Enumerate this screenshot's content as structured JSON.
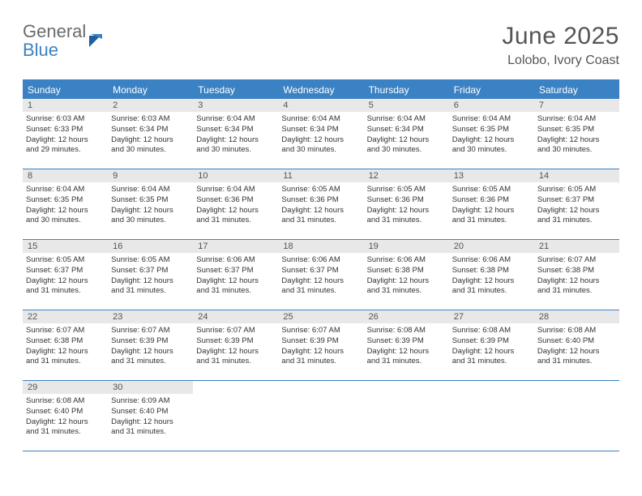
{
  "logo": {
    "general": "General",
    "blue": "Blue"
  },
  "title": "June 2025",
  "location": "Lolobo, Ivory Coast",
  "colors": {
    "header_bar": "#3b82c4",
    "header_text": "#ffffff",
    "day_num_bg": "#e8e8e8",
    "border": "#3b82c4",
    "text": "#333333",
    "title_text": "#555555"
  },
  "weekdays": [
    "Sunday",
    "Monday",
    "Tuesday",
    "Wednesday",
    "Thursday",
    "Friday",
    "Saturday"
  ],
  "weeks": [
    [
      {
        "n": "1",
        "sunrise": "Sunrise: 6:03 AM",
        "sunset": "Sunset: 6:33 PM",
        "day1": "Daylight: 12 hours",
        "day2": "and 29 minutes."
      },
      {
        "n": "2",
        "sunrise": "Sunrise: 6:03 AM",
        "sunset": "Sunset: 6:34 PM",
        "day1": "Daylight: 12 hours",
        "day2": "and 30 minutes."
      },
      {
        "n": "3",
        "sunrise": "Sunrise: 6:04 AM",
        "sunset": "Sunset: 6:34 PM",
        "day1": "Daylight: 12 hours",
        "day2": "and 30 minutes."
      },
      {
        "n": "4",
        "sunrise": "Sunrise: 6:04 AM",
        "sunset": "Sunset: 6:34 PM",
        "day1": "Daylight: 12 hours",
        "day2": "and 30 minutes."
      },
      {
        "n": "5",
        "sunrise": "Sunrise: 6:04 AM",
        "sunset": "Sunset: 6:34 PM",
        "day1": "Daylight: 12 hours",
        "day2": "and 30 minutes."
      },
      {
        "n": "6",
        "sunrise": "Sunrise: 6:04 AM",
        "sunset": "Sunset: 6:35 PM",
        "day1": "Daylight: 12 hours",
        "day2": "and 30 minutes."
      },
      {
        "n": "7",
        "sunrise": "Sunrise: 6:04 AM",
        "sunset": "Sunset: 6:35 PM",
        "day1": "Daylight: 12 hours",
        "day2": "and 30 minutes."
      }
    ],
    [
      {
        "n": "8",
        "sunrise": "Sunrise: 6:04 AM",
        "sunset": "Sunset: 6:35 PM",
        "day1": "Daylight: 12 hours",
        "day2": "and 30 minutes."
      },
      {
        "n": "9",
        "sunrise": "Sunrise: 6:04 AM",
        "sunset": "Sunset: 6:35 PM",
        "day1": "Daylight: 12 hours",
        "day2": "and 30 minutes."
      },
      {
        "n": "10",
        "sunrise": "Sunrise: 6:04 AM",
        "sunset": "Sunset: 6:36 PM",
        "day1": "Daylight: 12 hours",
        "day2": "and 31 minutes."
      },
      {
        "n": "11",
        "sunrise": "Sunrise: 6:05 AM",
        "sunset": "Sunset: 6:36 PM",
        "day1": "Daylight: 12 hours",
        "day2": "and 31 minutes."
      },
      {
        "n": "12",
        "sunrise": "Sunrise: 6:05 AM",
        "sunset": "Sunset: 6:36 PM",
        "day1": "Daylight: 12 hours",
        "day2": "and 31 minutes."
      },
      {
        "n": "13",
        "sunrise": "Sunrise: 6:05 AM",
        "sunset": "Sunset: 6:36 PM",
        "day1": "Daylight: 12 hours",
        "day2": "and 31 minutes."
      },
      {
        "n": "14",
        "sunrise": "Sunrise: 6:05 AM",
        "sunset": "Sunset: 6:37 PM",
        "day1": "Daylight: 12 hours",
        "day2": "and 31 minutes."
      }
    ],
    [
      {
        "n": "15",
        "sunrise": "Sunrise: 6:05 AM",
        "sunset": "Sunset: 6:37 PM",
        "day1": "Daylight: 12 hours",
        "day2": "and 31 minutes."
      },
      {
        "n": "16",
        "sunrise": "Sunrise: 6:05 AM",
        "sunset": "Sunset: 6:37 PM",
        "day1": "Daylight: 12 hours",
        "day2": "and 31 minutes."
      },
      {
        "n": "17",
        "sunrise": "Sunrise: 6:06 AM",
        "sunset": "Sunset: 6:37 PM",
        "day1": "Daylight: 12 hours",
        "day2": "and 31 minutes."
      },
      {
        "n": "18",
        "sunrise": "Sunrise: 6:06 AM",
        "sunset": "Sunset: 6:37 PM",
        "day1": "Daylight: 12 hours",
        "day2": "and 31 minutes."
      },
      {
        "n": "19",
        "sunrise": "Sunrise: 6:06 AM",
        "sunset": "Sunset: 6:38 PM",
        "day1": "Daylight: 12 hours",
        "day2": "and 31 minutes."
      },
      {
        "n": "20",
        "sunrise": "Sunrise: 6:06 AM",
        "sunset": "Sunset: 6:38 PM",
        "day1": "Daylight: 12 hours",
        "day2": "and 31 minutes."
      },
      {
        "n": "21",
        "sunrise": "Sunrise: 6:07 AM",
        "sunset": "Sunset: 6:38 PM",
        "day1": "Daylight: 12 hours",
        "day2": "and 31 minutes."
      }
    ],
    [
      {
        "n": "22",
        "sunrise": "Sunrise: 6:07 AM",
        "sunset": "Sunset: 6:38 PM",
        "day1": "Daylight: 12 hours",
        "day2": "and 31 minutes."
      },
      {
        "n": "23",
        "sunrise": "Sunrise: 6:07 AM",
        "sunset": "Sunset: 6:39 PM",
        "day1": "Daylight: 12 hours",
        "day2": "and 31 minutes."
      },
      {
        "n": "24",
        "sunrise": "Sunrise: 6:07 AM",
        "sunset": "Sunset: 6:39 PM",
        "day1": "Daylight: 12 hours",
        "day2": "and 31 minutes."
      },
      {
        "n": "25",
        "sunrise": "Sunrise: 6:07 AM",
        "sunset": "Sunset: 6:39 PM",
        "day1": "Daylight: 12 hours",
        "day2": "and 31 minutes."
      },
      {
        "n": "26",
        "sunrise": "Sunrise: 6:08 AM",
        "sunset": "Sunset: 6:39 PM",
        "day1": "Daylight: 12 hours",
        "day2": "and 31 minutes."
      },
      {
        "n": "27",
        "sunrise": "Sunrise: 6:08 AM",
        "sunset": "Sunset: 6:39 PM",
        "day1": "Daylight: 12 hours",
        "day2": "and 31 minutes."
      },
      {
        "n": "28",
        "sunrise": "Sunrise: 6:08 AM",
        "sunset": "Sunset: 6:40 PM",
        "day1": "Daylight: 12 hours",
        "day2": "and 31 minutes."
      }
    ],
    [
      {
        "n": "29",
        "sunrise": "Sunrise: 6:08 AM",
        "sunset": "Sunset: 6:40 PM",
        "day1": "Daylight: 12 hours",
        "day2": "and 31 minutes."
      },
      {
        "n": "30",
        "sunrise": "Sunrise: 6:09 AM",
        "sunset": "Sunset: 6:40 PM",
        "day1": "Daylight: 12 hours",
        "day2": "and 31 minutes."
      },
      null,
      null,
      null,
      null,
      null
    ]
  ]
}
